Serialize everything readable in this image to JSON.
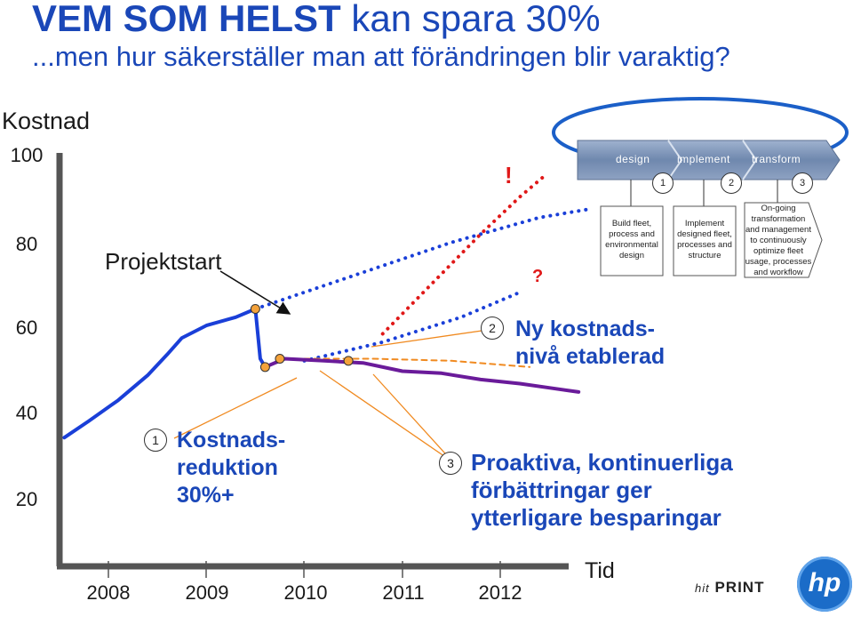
{
  "header": {
    "title_strong": "VEM SOM HELST",
    "title_rest": " kan spara 30%",
    "subtitle": "...men hur säkerställer man att förändringen blir varaktig?"
  },
  "chart_data": {
    "type": "line",
    "title": "VEM SOM HELST kan spara 30%",
    "ylabel": "Kostnad",
    "xlabel": "Tid",
    "yticks": [
      "100",
      "80",
      "60",
      "40",
      "20"
    ],
    "xticks": [
      "2008",
      "2009",
      "2010",
      "2011",
      "2012"
    ],
    "ylim": [
      0,
      100
    ],
    "xlim": [
      2007.6,
      2012.9
    ],
    "grid": false,
    "series": [
      {
        "color": "#1a3fd8",
        "style": "solid",
        "x": [
          2007.55,
          2007.8,
          2008.1,
          2008.4,
          2008.6,
          2008.75,
          2009.0,
          2009.3,
          2009.5
        ],
        "y": [
          31,
          35,
          40,
          46,
          51,
          55,
          58,
          60,
          62
        ]
      },
      {
        "color": "#1a3fd8",
        "style": "solid",
        "x": [
          2009.5,
          2009.55,
          2009.6
        ],
        "y": [
          62,
          50,
          48
        ]
      },
      {
        "color": "#1a3fd8",
        "style": "dotted",
        "x": [
          2009.5,
          2010.5,
          2011.5,
          2012.4,
          2012.9
        ],
        "y": [
          62,
          70,
          78,
          84,
          86
        ]
      },
      {
        "color": "#e01818",
        "style": "dotted",
        "x": [
          2010.8,
          2011.3,
          2011.8,
          2012.2,
          2012.45
        ],
        "y": [
          56,
          68,
          80,
          89,
          94
        ]
      },
      {
        "color": "#1a3fd8",
        "style": "dotted",
        "x": [
          2010.0,
          2010.8,
          2011.6,
          2012.2
        ],
        "y": [
          49.5,
          54,
          60,
          66
        ]
      },
      {
        "color": "#f08a20",
        "style": "dashed",
        "x": [
          2009.9,
          2010.7,
          2011.5,
          2012.3
        ],
        "y": [
          50,
          50,
          49.5,
          48
        ]
      },
      {
        "color": "#6a1b9a",
        "style": "solid",
        "x": [
          2009.6,
          2009.8,
          2010.2,
          2010.6,
          2011.0,
          2011.4,
          2011.8,
          2012.2,
          2012.5,
          2012.8
        ],
        "y": [
          48,
          50,
          49.5,
          49,
          47,
          46.5,
          45,
          44,
          43,
          42
        ]
      }
    ],
    "markers": [
      {
        "x": 2009.5,
        "y": 62
      },
      {
        "x": 2009.6,
        "y": 48
      },
      {
        "x": 2009.75,
        "y": 50
      },
      {
        "x": 2010.45,
        "y": 49.5
      }
    ],
    "annotations": {
      "projektstart": "Projektstart",
      "exclaim": "!",
      "question": "?",
      "ann1_num": "1",
      "ann1_lines": [
        "Kostnads-",
        "reduktion",
        "30%+"
      ],
      "ann2_num": "2",
      "ann2_lines": [
        "Ny kostnads-",
        "nivå etablerad"
      ],
      "ann3_num": "3",
      "ann3_lines": [
        "Proaktiva, kontinuerliga",
        "förbättringar ger",
        "ytterligare besparingar"
      ]
    }
  },
  "process": {
    "steps": [
      {
        "label": "design",
        "num": "1",
        "desc": "Build fleet, process and environmental design"
      },
      {
        "label": "implement",
        "num": "2",
        "desc": "Implement designed fleet, processes and structure"
      },
      {
        "label": "transform",
        "num": "3",
        "desc": "On-going transformation and management to continuously optimize fleet usage, processes and workflow"
      }
    ]
  },
  "logos": {
    "hitprint_prefix": "hit",
    "hitprint_main": "PRINT",
    "hp": "hp"
  },
  "colors": {
    "title": "#1a47b8",
    "blue_line": "#1a3fd8",
    "red_dotted": "#e01818",
    "purple_line": "#6a1b9a",
    "orange_dashed": "#f08a20",
    "marker_fill": "#f4a23a",
    "process_bar": "#7a93b8"
  }
}
